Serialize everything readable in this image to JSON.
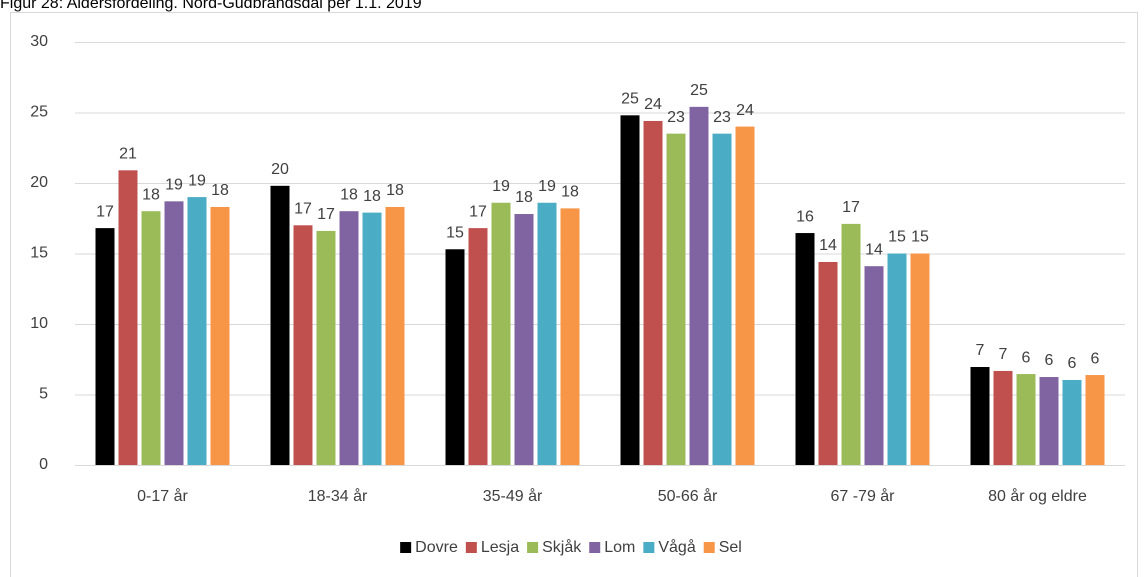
{
  "chart_data": {
    "type": "bar",
    "title": "Figur 28: Aldersfordeling. Nord-Gudbrandsdal per 1.1. 2019",
    "categories": [
      "0-17 år",
      "18-34 år",
      "35-49 år",
      "50-66 år",
      "67 -79 år",
      "80 år og eldre"
    ],
    "series": [
      {
        "name": "Dovre",
        "color": "#000000",
        "values": [
          16.8,
          19.8,
          15.3,
          24.8,
          16.45,
          6.95
        ],
        "value_labels": [
          "17",
          "20",
          "15",
          "25",
          "16",
          "7"
        ]
      },
      {
        "name": "Lesja",
        "color": "#c0504d",
        "values": [
          20.9,
          17.0,
          16.8,
          24.4,
          14.4,
          6.67
        ],
        "value_labels": [
          "21",
          "17",
          "17",
          "24",
          "14",
          "7"
        ]
      },
      {
        "name": "Skjåk",
        "color": "#9bbb59",
        "values": [
          18.0,
          16.6,
          18.6,
          23.5,
          17.1,
          6.45
        ],
        "value_labels": [
          "18",
          "17",
          "19",
          "23",
          "17",
          "6"
        ]
      },
      {
        "name": "Lom",
        "color": "#8064a2",
        "values": [
          18.7,
          18.0,
          17.8,
          25.4,
          14.1,
          6.24
        ],
        "value_labels": [
          "19",
          "18",
          "18",
          "25",
          "14",
          "6"
        ]
      },
      {
        "name": "Vågå",
        "color": "#4bacc6",
        "values": [
          19.0,
          17.9,
          18.6,
          23.5,
          15.0,
          6.03
        ],
        "value_labels": [
          "19",
          "18",
          "19",
          "23",
          "15",
          "6"
        ]
      },
      {
        "name": "Sel",
        "color": "#f79646",
        "values": [
          18.3,
          18.3,
          18.2,
          24.0,
          15.0,
          6.38
        ],
        "value_labels": [
          "18",
          "18",
          "18",
          "24",
          "15",
          "6"
        ]
      }
    ],
    "ylim": [
      0,
      30
    ],
    "yticks": [
      0,
      5,
      10,
      15,
      20,
      25,
      30
    ],
    "grid": true,
    "legend": "bottom"
  }
}
